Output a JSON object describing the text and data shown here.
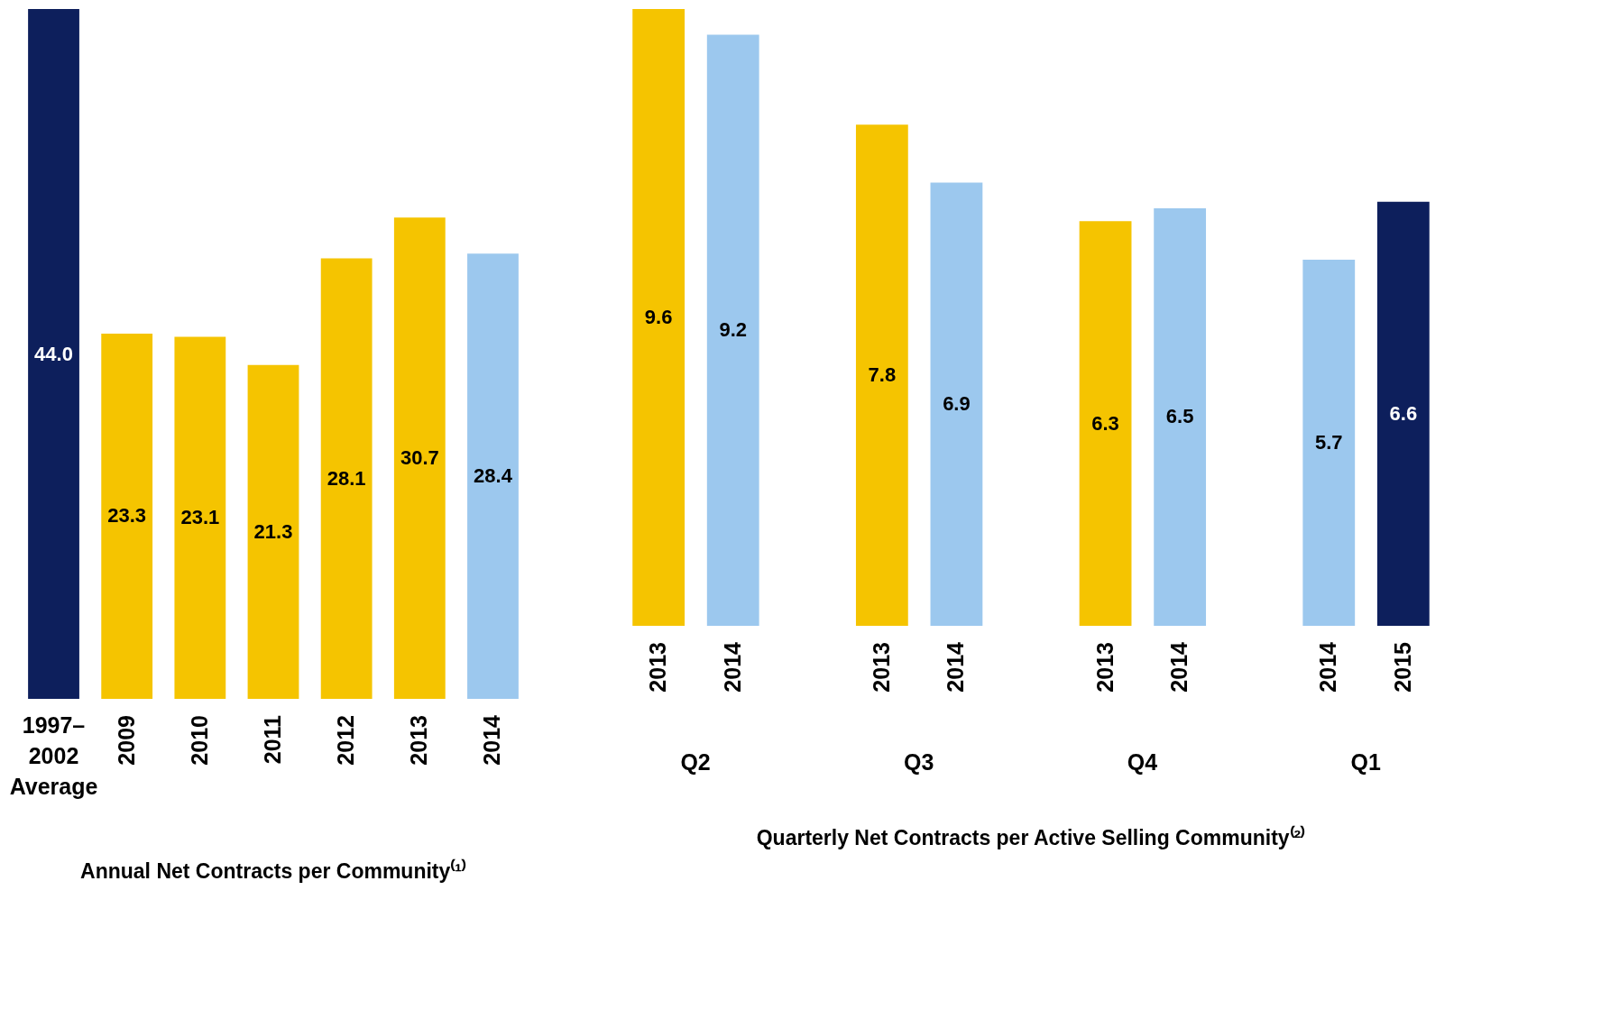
{
  "chart_data": [
    {
      "type": "bar",
      "title": "Annual Net Contracts per Community⁽¹⁾",
      "categories": [
        "1997–2002 Average",
        "2009",
        "2010",
        "2011",
        "2012",
        "2013",
        "2014"
      ],
      "values": [
        44.0,
        23.3,
        23.1,
        21.3,
        28.1,
        30.7,
        28.4
      ],
      "colors": [
        "#0d1f5c",
        "#f5c400",
        "#f5c400",
        "#f5c400",
        "#f5c400",
        "#f5c400",
        "#9cc8ee"
      ],
      "value_labels": [
        "44.0",
        "23.3",
        "23.1",
        "21.3",
        "28.1",
        "30.7",
        "28.4"
      ]
    },
    {
      "type": "bar",
      "title": "Quarterly Net Contracts per Active Selling Community⁽²⁾",
      "categories": [
        "2013",
        "2014",
        "2013",
        "2014",
        "2013",
        "2014",
        "2014",
        "2015"
      ],
      "values": [
        9.6,
        9.2,
        7.8,
        6.9,
        6.3,
        6.5,
        5.7,
        6.6
      ],
      "colors": [
        "#f5c400",
        "#9cc8ee",
        "#f5c400",
        "#9cc8ee",
        "#f5c400",
        "#9cc8ee",
        "#9cc8ee",
        "#0d1f5c"
      ],
      "value_labels": [
        "9.6",
        "9.2",
        "7.8",
        "6.9",
        "6.3",
        "6.5",
        "5.7",
        "6.6"
      ],
      "annotations": [
        "Q2",
        "Q3",
        "Q4",
        "Q1"
      ]
    }
  ]
}
